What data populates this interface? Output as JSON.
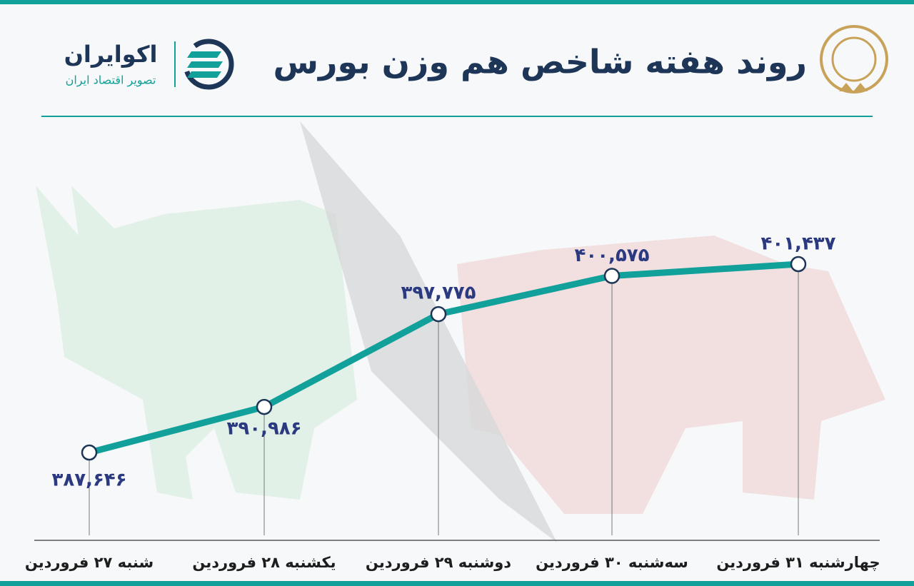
{
  "chart_data": {
    "type": "line",
    "title": "روند هفته شاخص هم وزن بورس",
    "categories": [
      "شنبه ۲۷ فروردین",
      "یکشنبه ۲۸ فروردین",
      "دوشنبه ۲۹ فروردین",
      "سه‌شنبه ۳۰ فروردین",
      "چهارشنبه ۳۱ فروردین"
    ],
    "values": [
      387646,
      390986,
      397775,
      400575,
      401437
    ],
    "value_labels": [
      "۳۸۷,۶۴۶",
      "۳۹۰,۹۸۶",
      "۳۹۷,۷۷۵",
      "۴۰۰,۵۷۵",
      "۴۰۱,۴۳۷"
    ],
    "color": "#12a09a"
  },
  "logo": {
    "name": "اکوایران",
    "tagline": "تصویر اقتصاد ایران"
  }
}
